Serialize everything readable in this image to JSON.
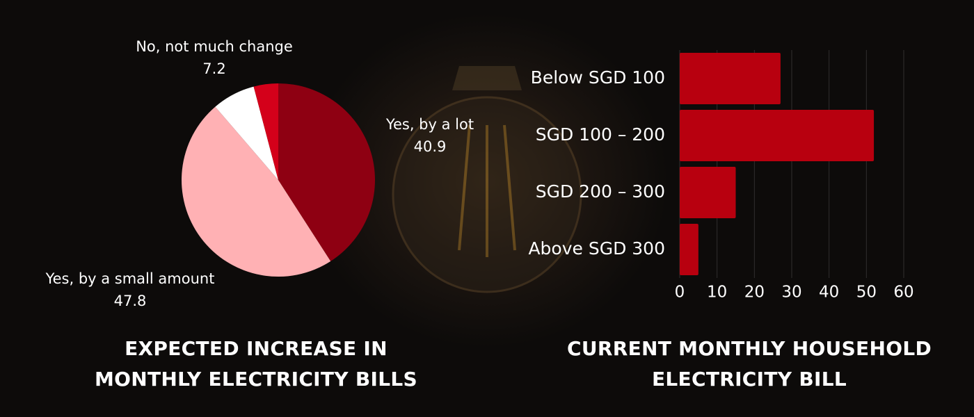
{
  "chart_data": [
    {
      "type": "pie",
      "title": "EXPECTED INCREASE IN MONTHLY ELECTRICITY BILLS",
      "categories": [
        "Yes, by a lot",
        "Yes, by a small amount",
        "No, not much change",
        null
      ],
      "values": [
        40.9,
        47.8,
        7.2,
        4.1
      ],
      "colors": [
        "#8e0012",
        "#ffb1b4",
        "#ffffff",
        "#d4001a"
      ]
    },
    {
      "type": "hbar",
      "title": "CURRENT MONTHLY HOUSEHOLD ELECTRICITY BILL",
      "categories": [
        "Below SGD 100",
        "SGD 100 – 200",
        "SGD 200 – 300",
        "Above SGD 300"
      ],
      "values": [
        27,
        52,
        15,
        5
      ],
      "color": "#b8000f",
      "xlim": [
        0,
        60
      ],
      "xticks": [
        0,
        10,
        20,
        30,
        40,
        50,
        60
      ],
      "grid": true
    }
  ]
}
